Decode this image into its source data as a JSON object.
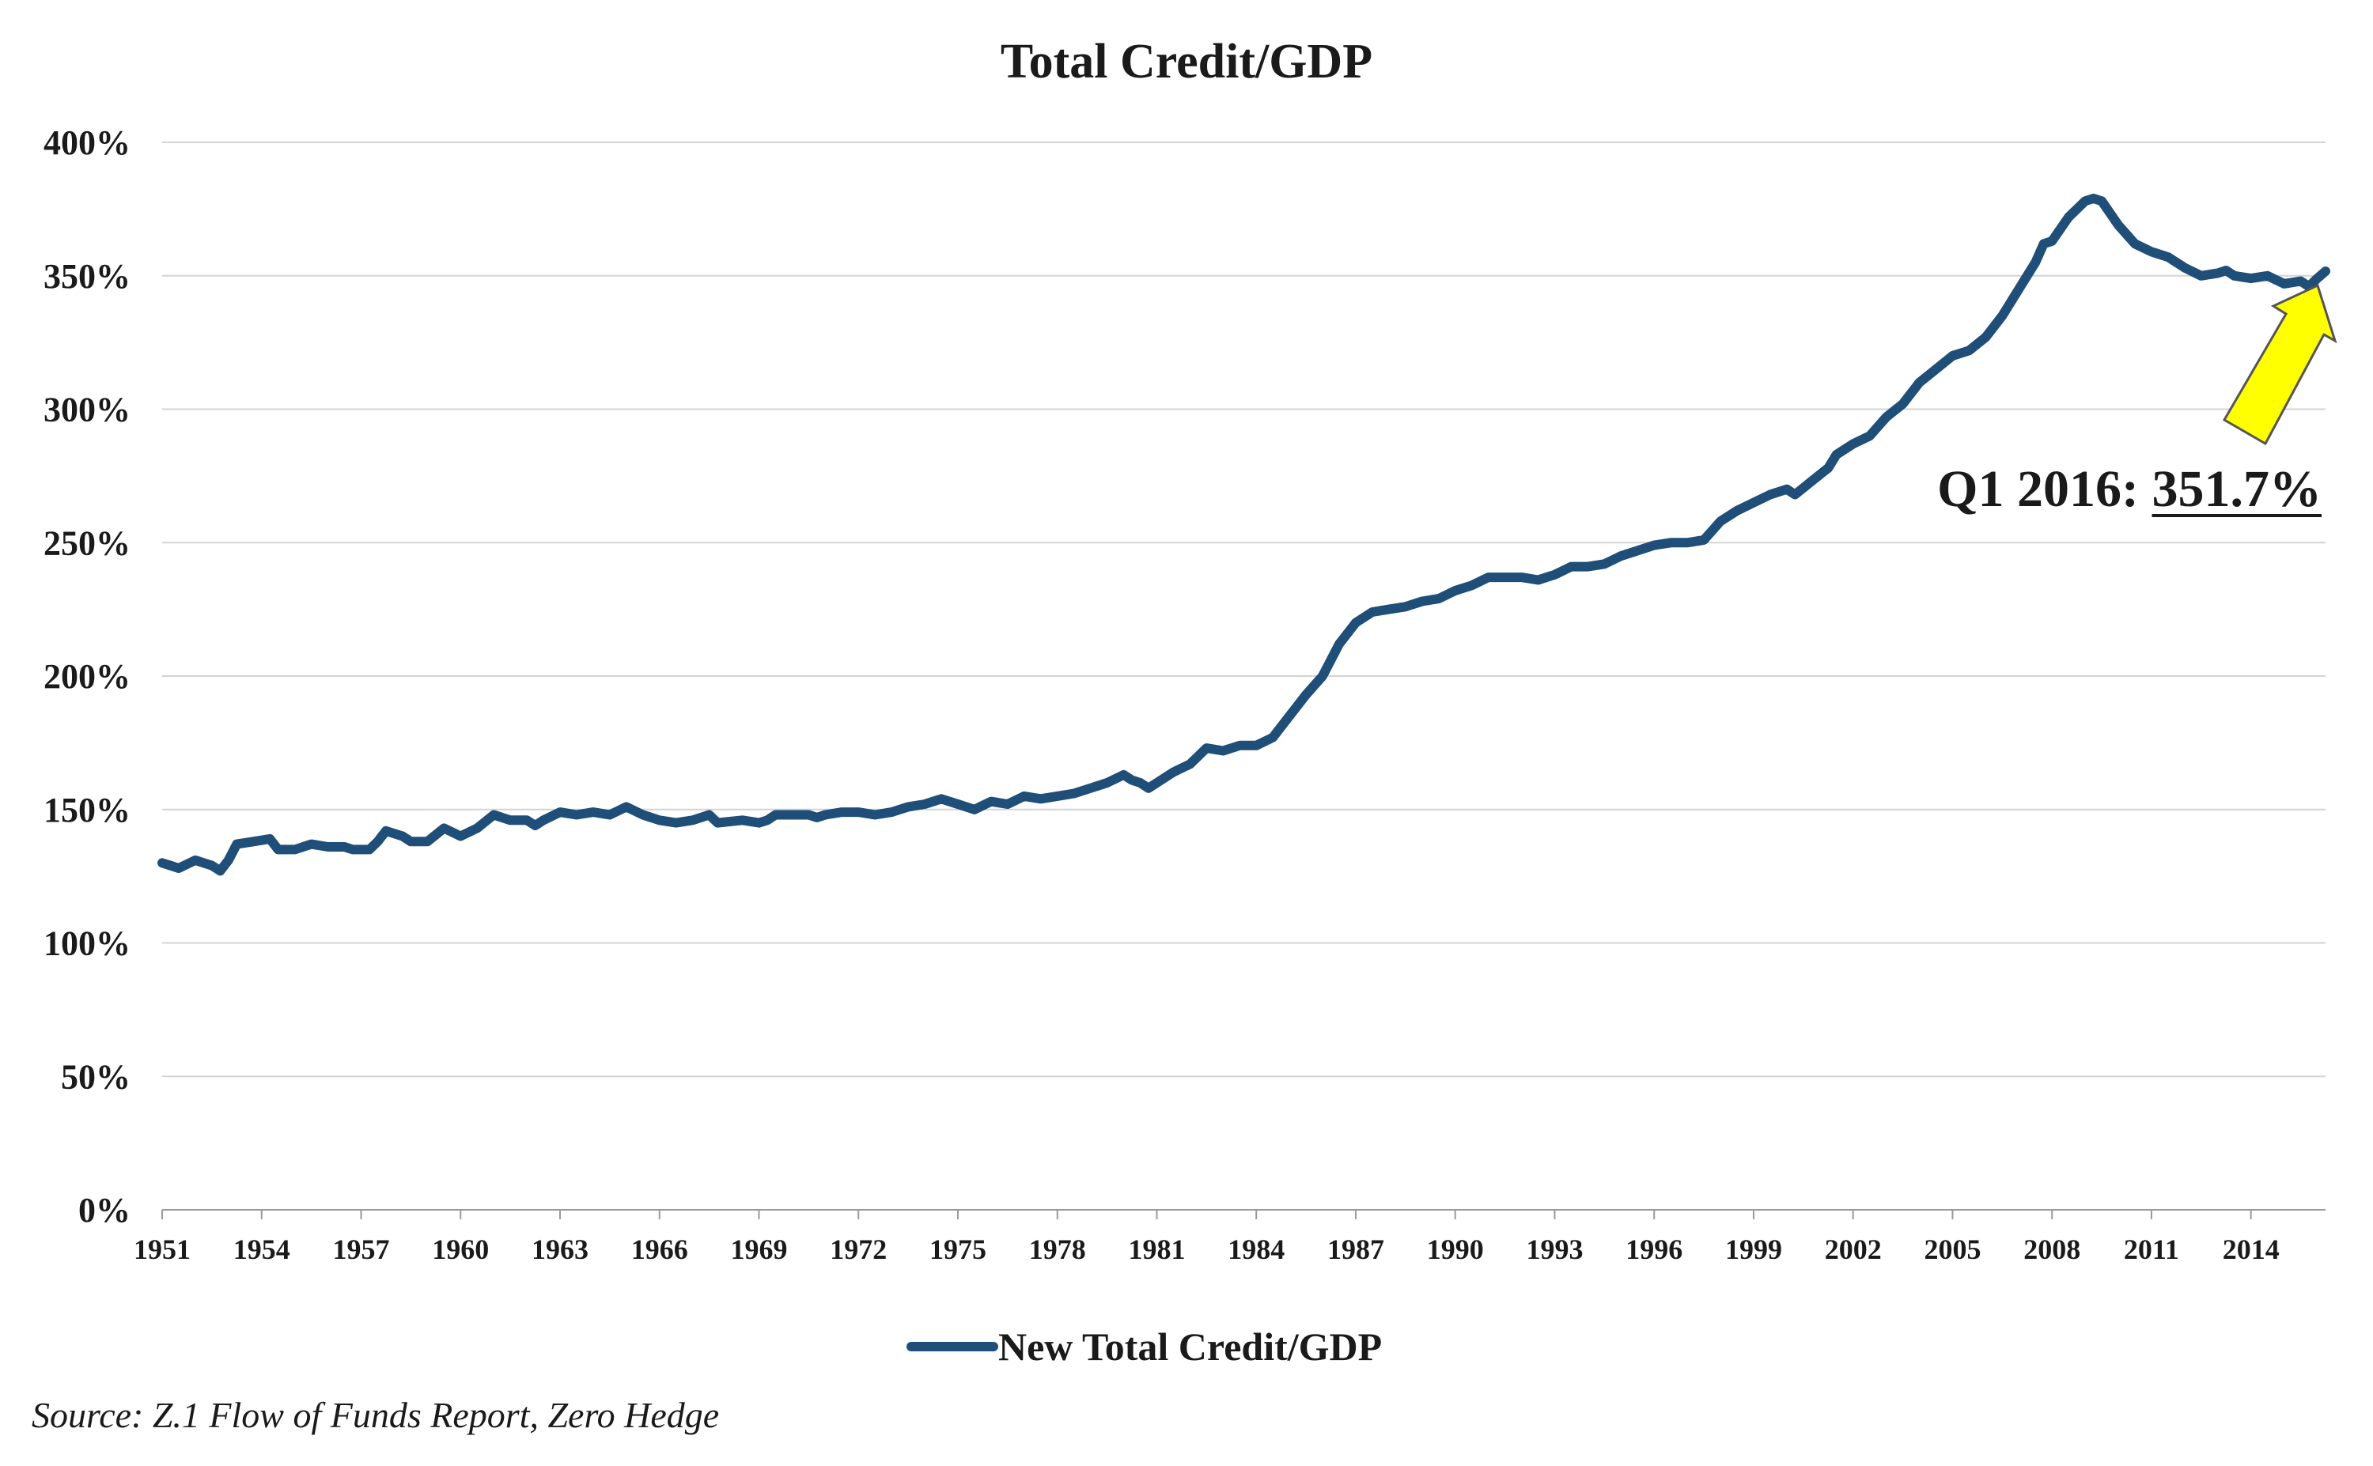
{
  "chart_data": {
    "type": "line",
    "title": "Total Credit/GDP",
    "xlabel": "",
    "ylabel": "",
    "ylim": [
      0,
      400
    ],
    "xlim": [
      1951,
      2016.25
    ],
    "yticks": [
      {
        "value": 0,
        "label": "0%"
      },
      {
        "value": 50,
        "label": "50%"
      },
      {
        "value": 100,
        "label": "100%"
      },
      {
        "value": 150,
        "label": "150%"
      },
      {
        "value": 200,
        "label": "200%"
      },
      {
        "value": 250,
        "label": "250%"
      },
      {
        "value": 300,
        "label": "300%"
      },
      {
        "value": 350,
        "label": "350%"
      },
      {
        "value": 400,
        "label": "400%"
      }
    ],
    "xticks": [
      {
        "value": 1951,
        "label": "1951"
      },
      {
        "value": 1954,
        "label": "1954"
      },
      {
        "value": 1957,
        "label": "1957"
      },
      {
        "value": 1960,
        "label": "1960"
      },
      {
        "value": 1963,
        "label": "1963"
      },
      {
        "value": 1966,
        "label": "1966"
      },
      {
        "value": 1969,
        "label": "1969"
      },
      {
        "value": 1972,
        "label": "1972"
      },
      {
        "value": 1975,
        "label": "1975"
      },
      {
        "value": 1978,
        "label": "1978"
      },
      {
        "value": 1981,
        "label": "1981"
      },
      {
        "value": 1984,
        "label": "1984"
      },
      {
        "value": 1987,
        "label": "1987"
      },
      {
        "value": 1990,
        "label": "1990"
      },
      {
        "value": 1993,
        "label": "1993"
      },
      {
        "value": 1996,
        "label": "1996"
      },
      {
        "value": 1999,
        "label": "1999"
      },
      {
        "value": 2002,
        "label": "2002"
      },
      {
        "value": 2005,
        "label": "2005"
      },
      {
        "value": 2008,
        "label": "2008"
      },
      {
        "value": 2011,
        "label": "2011"
      },
      {
        "value": 2014,
        "label": "2014"
      }
    ],
    "grid": true,
    "legend": "bottom",
    "series": [
      {
        "name": "New Total Credit/GDP",
        "color": "#1f4e79",
        "points": [
          [
            1951.0,
            130
          ],
          [
            1951.5,
            128
          ],
          [
            1952.0,
            131
          ],
          [
            1952.5,
            129
          ],
          [
            1952.75,
            127
          ],
          [
            1953.0,
            131
          ],
          [
            1953.25,
            137
          ],
          [
            1953.75,
            138
          ],
          [
            1954.25,
            139
          ],
          [
            1954.5,
            135
          ],
          [
            1955.0,
            135
          ],
          [
            1955.5,
            137
          ],
          [
            1956.0,
            136
          ],
          [
            1956.5,
            136
          ],
          [
            1956.75,
            135
          ],
          [
            1957.25,
            135
          ],
          [
            1957.5,
            138
          ],
          [
            1957.75,
            142
          ],
          [
            1958.25,
            140
          ],
          [
            1958.5,
            138
          ],
          [
            1959.0,
            138
          ],
          [
            1959.5,
            143
          ],
          [
            1960.0,
            140
          ],
          [
            1960.5,
            143
          ],
          [
            1961.0,
            148
          ],
          [
            1961.5,
            146
          ],
          [
            1962.0,
            146
          ],
          [
            1962.25,
            144
          ],
          [
            1962.5,
            146
          ],
          [
            1963.0,
            149
          ],
          [
            1963.5,
            148
          ],
          [
            1964.0,
            149
          ],
          [
            1964.5,
            148
          ],
          [
            1965.0,
            151
          ],
          [
            1965.5,
            148
          ],
          [
            1966.0,
            146
          ],
          [
            1966.5,
            145
          ],
          [
            1967.0,
            146
          ],
          [
            1967.5,
            148
          ],
          [
            1967.75,
            145
          ],
          [
            1968.5,
            146
          ],
          [
            1969.0,
            145
          ],
          [
            1969.25,
            146
          ],
          [
            1969.5,
            148
          ],
          [
            1970.0,
            148
          ],
          [
            1970.5,
            148
          ],
          [
            1970.75,
            147
          ],
          [
            1971.0,
            148
          ],
          [
            1971.5,
            149
          ],
          [
            1972.0,
            149
          ],
          [
            1972.5,
            148
          ],
          [
            1973.0,
            149
          ],
          [
            1973.5,
            151
          ],
          [
            1974.0,
            152
          ],
          [
            1974.5,
            154
          ],
          [
            1975.0,
            152
          ],
          [
            1975.5,
            150
          ],
          [
            1976.0,
            153
          ],
          [
            1976.5,
            152
          ],
          [
            1977.0,
            155
          ],
          [
            1977.5,
            154
          ],
          [
            1978.0,
            155
          ],
          [
            1978.5,
            156
          ],
          [
            1979.0,
            158
          ],
          [
            1979.5,
            160
          ],
          [
            1980.0,
            163
          ],
          [
            1980.25,
            161
          ],
          [
            1980.5,
            160
          ],
          [
            1980.75,
            158
          ],
          [
            1981.0,
            160
          ],
          [
            1981.5,
            164
          ],
          [
            1982.0,
            167
          ],
          [
            1982.5,
            173
          ],
          [
            1983.0,
            172
          ],
          [
            1983.5,
            174
          ],
          [
            1984.0,
            174
          ],
          [
            1984.5,
            177
          ],
          [
            1985.0,
            185
          ],
          [
            1985.5,
            193
          ],
          [
            1986.0,
            200
          ],
          [
            1986.5,
            212
          ],
          [
            1987.0,
            220
          ],
          [
            1987.5,
            224
          ],
          [
            1988.0,
            225
          ],
          [
            1988.5,
            226
          ],
          [
            1989.0,
            228
          ],
          [
            1989.5,
            229
          ],
          [
            1990.0,
            232
          ],
          [
            1990.5,
            234
          ],
          [
            1991.0,
            237
          ],
          [
            1991.5,
            237
          ],
          [
            1992.0,
            237
          ],
          [
            1992.5,
            236
          ],
          [
            1993.0,
            238
          ],
          [
            1993.5,
            241
          ],
          [
            1994.0,
            241
          ],
          [
            1994.5,
            242
          ],
          [
            1995.0,
            245
          ],
          [
            1995.5,
            247
          ],
          [
            1996.0,
            249
          ],
          [
            1996.5,
            250
          ],
          [
            1997.0,
            250
          ],
          [
            1997.5,
            251
          ],
          [
            1998.0,
            258
          ],
          [
            1998.5,
            262
          ],
          [
            1999.0,
            265
          ],
          [
            1999.5,
            268
          ],
          [
            2000.0,
            270
          ],
          [
            2000.25,
            268
          ],
          [
            2000.75,
            273
          ],
          [
            2001.25,
            278
          ],
          [
            2001.5,
            283
          ],
          [
            2002.0,
            287
          ],
          [
            2002.5,
            290
          ],
          [
            2003.0,
            297
          ],
          [
            2003.5,
            302
          ],
          [
            2004.0,
            310
          ],
          [
            2004.5,
            315
          ],
          [
            2005.0,
            320
          ],
          [
            2005.5,
            322
          ],
          [
            2006.0,
            327
          ],
          [
            2006.5,
            335
          ],
          [
            2007.0,
            345
          ],
          [
            2007.5,
            355
          ],
          [
            2007.75,
            362
          ],
          [
            2008.0,
            363
          ],
          [
            2008.5,
            372
          ],
          [
            2009.0,
            378
          ],
          [
            2009.25,
            379
          ],
          [
            2009.5,
            378
          ],
          [
            2010.0,
            369
          ],
          [
            2010.5,
            362
          ],
          [
            2011.0,
            359
          ],
          [
            2011.5,
            357
          ],
          [
            2012.0,
            353
          ],
          [
            2012.5,
            350
          ],
          [
            2013.0,
            351
          ],
          [
            2013.25,
            352
          ],
          [
            2013.5,
            350
          ],
          [
            2014.0,
            349
          ],
          [
            2014.5,
            350
          ],
          [
            2015.0,
            347
          ],
          [
            2015.5,
            348
          ],
          [
            2015.75,
            346
          ],
          [
            2016.0,
            349
          ],
          [
            2016.25,
            351.7
          ]
        ]
      }
    ],
    "annotation": {
      "text_prefix": "Q1 2016: ",
      "text_value": "351.7%",
      "x": 2016.25,
      "y": 351.7,
      "arrow_color": "#ffff00"
    },
    "source": "Source: Z.1 Flow of Funds Report, Zero Hedge"
  }
}
